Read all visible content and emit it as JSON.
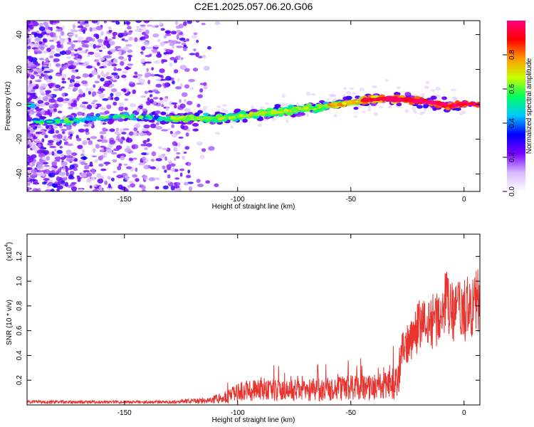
{
  "title": "C2E1.2025.057.06.20.G06",
  "chart_data": [
    {
      "type": "heatmap",
      "xlabel": "Height of straight line (km)",
      "ylabel": "Frequency (Hz)",
      "xlim": [
        -193,
        7
      ],
      "ylim": [
        -50,
        48
      ],
      "x_ticks": [
        -150,
        -100,
        -50,
        0
      ],
      "x_tick_labels": [
        "-150",
        "-100",
        "-50",
        "0"
      ],
      "y_ticks": [
        -40,
        -20,
        0,
        20,
        40
      ],
      "y_tick_labels": [
        "-40",
        "-20",
        "0",
        "20",
        "40"
      ],
      "colorbar": {
        "label": "Normalized spectral amplitude",
        "range": [
          0,
          1
        ],
        "ticks": [
          0.0,
          0.2,
          0.4,
          0.6,
          0.8
        ],
        "tick_labels": [
          "0.0",
          "0.2",
          "0.4",
          "0.6",
          "0.8"
        ],
        "colormap": [
          "#ffffff",
          "#d6b8ff",
          "#7a00ff",
          "#0000ff",
          "#00c8ff",
          "#00ff60",
          "#c8ff00",
          "#ff9900",
          "#ff0000",
          "#ff007f"
        ]
      },
      "ridge": {
        "description": "",
        "points": [
          [
            -190,
            -10
          ],
          [
            -180,
            -10
          ],
          [
            -150,
            -7
          ],
          [
            -130,
            -8
          ],
          [
            -110,
            -8
          ],
          [
            -100,
            -7
          ],
          [
            -80,
            -4
          ],
          [
            -60,
            -1
          ],
          [
            -40,
            3
          ],
          [
            -30,
            3
          ],
          [
            -20,
            2
          ],
          [
            -10,
            0
          ],
          [
            -5,
            -1
          ],
          [
            0,
            0
          ],
          [
            6,
            0
          ]
        ]
      },
      "grid": false
    },
    {
      "type": "line",
      "xlabel": "Height of straight line (km)",
      "ylabel": "SNR (10 * v/v)",
      "y_multiplier_label": "(x10",
      "y_multiplier_exp": "4",
      "xlim": [
        -193,
        7
      ],
      "ylim": [
        0,
        1.38
      ],
      "x_ticks": [
        -150,
        -100,
        -50,
        0
      ],
      "x_tick_labels": [
        "-150",
        "-100",
        "-50",
        "0"
      ],
      "y_ticks": [
        0.2,
        0.4,
        0.6,
        0.8,
        1.0,
        1.2
      ],
      "y_tick_labels": [
        "0.2",
        "0.4",
        "0.6",
        "0.8",
        "1.0",
        "1.2"
      ],
      "color": "#e8332e",
      "envelope": {
        "x": [
          -193,
          -160,
          -130,
          -115,
          -105,
          -100,
          -90,
          -80,
          -70,
          -60,
          -50,
          -40,
          -35,
          -30,
          -28,
          -25,
          -20,
          -15,
          -10,
          -8,
          -5,
          0,
          5,
          7
        ],
        "y": [
          0.03,
          0.03,
          0.03,
          0.06,
          0.1,
          0.17,
          0.22,
          0.19,
          0.2,
          0.21,
          0.23,
          0.24,
          0.26,
          0.3,
          0.5,
          0.6,
          0.78,
          0.8,
          0.9,
          1.0,
          0.9,
          0.92,
          1.0,
          1.0
        ]
      },
      "grid": false
    }
  ]
}
